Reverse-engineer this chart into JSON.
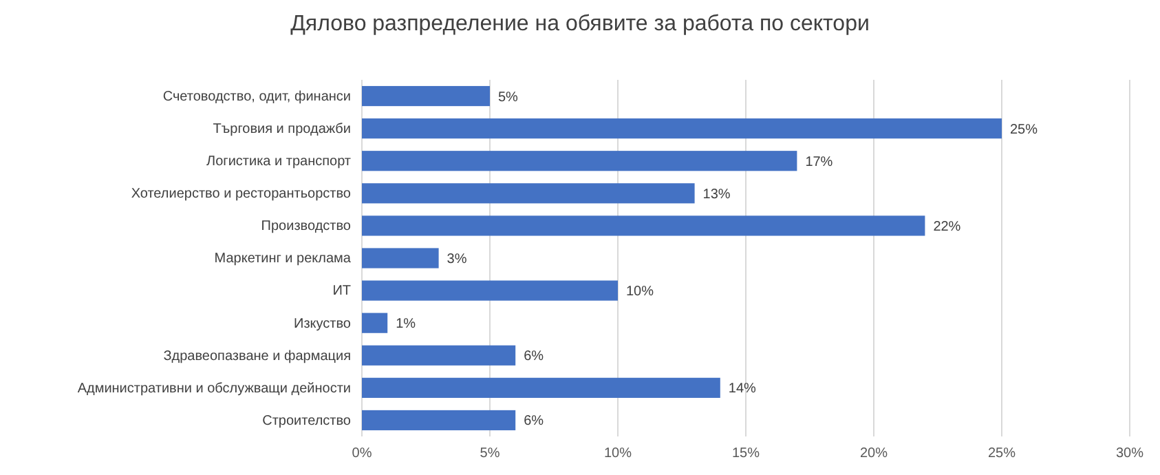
{
  "chart_data": {
    "type": "bar",
    "orientation": "horizontal",
    "title": "Дялово разпределение на обявите за работа по сектори",
    "categories": [
      "Счетоводство, одит, финанси",
      "Търговия и продажби",
      "Логистика и транспорт",
      "Хотелиерство и ресторантьорство",
      "Производство",
      "Маркетинг и реклама",
      "ИТ",
      "Изкуство",
      "Здравеопазване и фармация",
      "Административни и обслужващи дейности",
      "Строителство"
    ],
    "values": [
      5,
      25,
      17,
      13,
      22,
      3,
      10,
      1,
      6,
      14,
      6
    ],
    "value_labels": [
      "5%",
      "25%",
      "17%",
      "13%",
      "22%",
      "3%",
      "10%",
      "1%",
      "6%",
      "14%",
      "6%"
    ],
    "color": "#4472c4",
    "xlim": [
      0,
      30
    ],
    "xticks": [
      {
        "value": 0,
        "label": "0%"
      },
      {
        "value": 5,
        "label": "5%"
      },
      {
        "value": 10,
        "label": "10%"
      },
      {
        "value": 15,
        "label": "15%"
      },
      {
        "value": 20,
        "label": "20%"
      },
      {
        "value": 25,
        "label": "25%"
      },
      {
        "value": 30,
        "label": "30%"
      }
    ],
    "grid": "x"
  }
}
